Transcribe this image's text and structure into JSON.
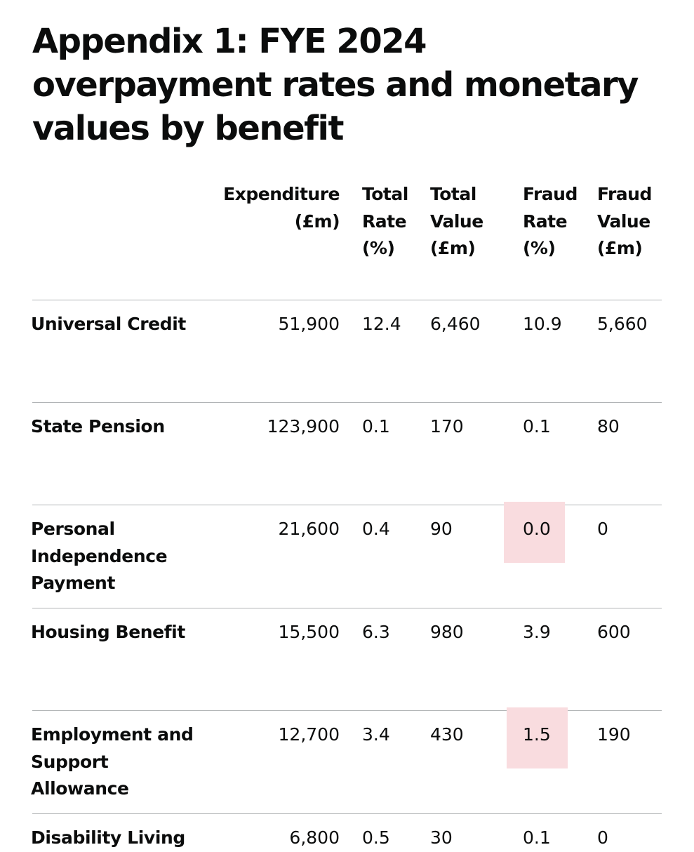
{
  "title": "Appendix 1: FYE 2024 overpayment rates and monetary values by benefit",
  "table": {
    "headers": [
      "Expenditure\n(£m)",
      "Total\nRate\n(%)",
      "Total\nValue\n(£m)",
      "Fraud\nRate\n(%)",
      "Fraud\nValue\n(£m)"
    ],
    "rows": [
      {
        "benefit": "Universal Credit",
        "expenditure": "51,900",
        "total_rate": "12.4",
        "total_value": "6,460",
        "fraud_rate": "10.9",
        "fraud_value": "5,660",
        "fraud_rate_highlighted": false
      },
      {
        "benefit": "State Pension",
        "expenditure": "123,900",
        "total_rate": "0.1",
        "total_value": "170",
        "fraud_rate": "0.1",
        "fraud_value": "80",
        "fraud_rate_highlighted": false
      },
      {
        "benefit": "Personal\nIndependence\nPayment",
        "expenditure": "21,600",
        "total_rate": "0.4",
        "total_value": "90",
        "fraud_rate": "0.0",
        "fraud_value": "0",
        "fraud_rate_highlighted": true
      },
      {
        "benefit": "Housing Benefit",
        "expenditure": "15,500",
        "total_rate": "6.3",
        "total_value": "980",
        "fraud_rate": "3.9",
        "fraud_value": "600",
        "fraud_rate_highlighted": false
      },
      {
        "benefit": "Employment and\nSupport\nAllowance",
        "expenditure": "12,700",
        "total_rate": "3.4",
        "total_value": "430",
        "fraud_rate": "1.5",
        "fraud_value": "190",
        "fraud_rate_highlighted": true
      },
      {
        "benefit": "Disability Living",
        "expenditure": "6,800",
        "total_rate": "0.5",
        "total_value": "30",
        "fraud_rate": "0.1",
        "fraud_value": "0",
        "fraud_rate_highlighted": false
      }
    ]
  },
  "colors": {
    "text": "#0b0c0c",
    "rule": "#b1b4b6",
    "highlight": "#f9dcdf"
  }
}
